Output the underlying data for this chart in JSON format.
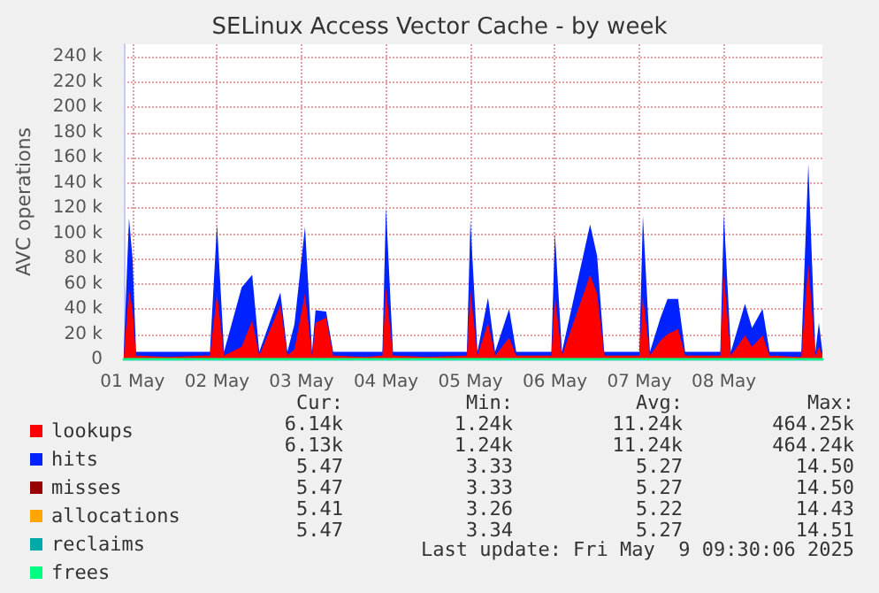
{
  "chart_data": {
    "type": "area",
    "title": "SELinux Access Vector Cache - by week",
    "ylabel": "AVC operations",
    "stacked": true,
    "grid": true,
    "legend": "bottom left",
    "x": [
      "2025-04-30T21:30",
      "2025-04-30T23:00",
      "2025-05-01T00:00",
      "2025-05-01T01:00",
      "2025-05-01T10:00",
      "2025-05-01T20:00",
      "2025-05-01T22:00",
      "2025-05-02T00:00",
      "2025-05-02T02:00",
      "2025-05-02T07:00",
      "2025-05-02T10:00",
      "2025-05-02T12:00",
      "2025-05-02T18:00",
      "2025-05-02T20:00",
      "2025-05-02T22:00",
      "2025-05-03T01:00",
      "2025-05-03T03:00",
      "2025-05-03T04:00",
      "2025-05-03T07:00",
      "2025-05-03T09:00",
      "2025-05-03T18:00",
      "2025-05-03T23:00",
      "2025-05-04T00:00",
      "2025-05-04T02:00",
      "2025-05-04T12:00",
      "2025-05-04T23:00",
      "2025-05-05T00:00",
      "2025-05-05T02:00",
      "2025-05-05T05:00",
      "2025-05-05T07:00",
      "2025-05-05T11:00",
      "2025-05-05T13:00",
      "2025-05-05T23:00",
      "2025-05-06T00:00",
      "2025-05-06T02:00",
      "2025-05-06T10:00",
      "2025-05-06T12:00",
      "2025-05-06T14:00",
      "2025-05-07T00:00",
      "2025-05-07T01:00",
      "2025-05-07T03:00",
      "2025-05-07T06:00",
      "2025-05-07T08:00",
      "2025-05-07T11:00",
      "2025-05-07T13:00",
      "2025-05-07T23:00",
      "2025-05-08T00:00",
      "2025-05-08T02:00",
      "2025-05-08T06:00",
      "2025-05-08T08:00",
      "2025-05-08T11:00",
      "2025-05-08T13:00",
      "2025-05-08T22:00",
      "2025-05-09T00:00",
      "2025-05-09T02:00",
      "2025-05-09T03:00",
      "2025-05-09T04:00"
    ],
    "series": [
      {
        "name": "lookups",
        "color": "#ff0000",
        "values": [
          2000,
          55000,
          40000,
          3000,
          2000,
          3000,
          3000,
          52000,
          3000,
          10000,
          31000,
          3000,
          43000,
          3000,
          8000,
          52000,
          3000,
          29000,
          33000,
          3000,
          2000,
          3000,
          57000,
          3000,
          2000,
          3000,
          55000,
          3000,
          29000,
          3000,
          17000,
          3000,
          3000,
          50000,
          3000,
          67000,
          52000,
          3000,
          3000,
          50000,
          3000,
          15000,
          20000,
          24000,
          3000,
          3000,
          67000,
          3000,
          19000,
          10000,
          19000,
          3000,
          2000,
          76000,
          3000,
          10000,
          3000
        ]
      },
      {
        "name": "hits",
        "color": "#0022ff",
        "values": [
          3000,
          57000,
          40000,
          3000,
          4000,
          3000,
          3000,
          55000,
          3000,
          47000,
          36000,
          3000,
          10000,
          3000,
          20000,
          53000,
          3000,
          10000,
          5000,
          3000,
          4000,
          3000,
          64000,
          3000,
          4000,
          3000,
          55000,
          3000,
          20000,
          3000,
          23000,
          3000,
          3000,
          50000,
          3000,
          40000,
          30000,
          3000,
          3000,
          64000,
          3000,
          18000,
          28000,
          24000,
          3000,
          3000,
          48000,
          3000,
          25000,
          15000,
          21000,
          3000,
          4000,
          79000,
          3000,
          19000,
          3000
        ]
      },
      {
        "name": "misses",
        "type": "line",
        "color": "#990000",
        "values": [
          null,
          null,
          null,
          null,
          null,
          null,
          null,
          null,
          null,
          null,
          null,
          null,
          null,
          null,
          null,
          null,
          null,
          null,
          null,
          null,
          null,
          null,
          null,
          null,
          null,
          null,
          null,
          null,
          null,
          null,
          null,
          null,
          null,
          null,
          null,
          null,
          null,
          null,
          null,
          null,
          null,
          null,
          null,
          null,
          null,
          null,
          null,
          null,
          null,
          null,
          null,
          null,
          null,
          null,
          null,
          null,
          null
        ]
      },
      {
        "name": "allocations",
        "type": "line",
        "color": "#ffa500",
        "values": [
          null,
          null,
          null,
          null,
          null,
          null,
          null,
          null,
          null,
          null,
          null,
          null,
          null,
          null,
          null,
          null,
          null,
          null,
          null,
          null,
          null,
          null,
          null,
          null,
          null,
          null,
          null,
          null,
          null,
          null,
          null,
          null,
          null,
          null,
          null,
          null,
          null,
          null,
          null,
          null,
          null,
          null,
          null,
          null,
          null,
          null,
          null,
          null,
          null,
          null,
          null,
          null,
          null,
          null,
          null,
          null,
          null
        ]
      },
      {
        "name": "reclaims",
        "type": "line",
        "color": "#00aaaa",
        "values": [
          null,
          null,
          null,
          null,
          null,
          null,
          null,
          null,
          null,
          null,
          null,
          null,
          null,
          null,
          null,
          null,
          null,
          null,
          null,
          null,
          null,
          null,
          null,
          null,
          null,
          null,
          null,
          null,
          null,
          null,
          null,
          null,
          null,
          null,
          null,
          null,
          null,
          null,
          null,
          null,
          null,
          null,
          null,
          null,
          null,
          null,
          null,
          null,
          null,
          null,
          null,
          null,
          null,
          null,
          null,
          null,
          null
        ]
      },
      {
        "name": "frees",
        "type": "line",
        "color": "#00ff80",
        "values": [
          5,
          5,
          5,
          5,
          5,
          5,
          5,
          5,
          5,
          5,
          5,
          5,
          5,
          5,
          5,
          5,
          5,
          5,
          5,
          5,
          5,
          5,
          5,
          5,
          5,
          5,
          5,
          5,
          5,
          5,
          5,
          5,
          5,
          5,
          5,
          5,
          5,
          5,
          5,
          5,
          5,
          5,
          5,
          5,
          5,
          5,
          5,
          5,
          5,
          5,
          5,
          5,
          5,
          5,
          5,
          5,
          5
        ]
      }
    ],
    "xlim": [
      "2025-04-30T21:30",
      "2025-05-09T04:00"
    ],
    "xticks": [
      {
        "value": "2025-05-01",
        "label": "01 May"
      },
      {
        "value": "2025-05-02",
        "label": "02 May"
      },
      {
        "value": "2025-05-03",
        "label": "03 May"
      },
      {
        "value": "2025-05-04",
        "label": "04 May"
      },
      {
        "value": "2025-05-05",
        "label": "05 May"
      },
      {
        "value": "2025-05-06",
        "label": "06 May"
      },
      {
        "value": "2025-05-07",
        "label": "07 May"
      },
      {
        "value": "2025-05-08",
        "label": "08 May"
      }
    ],
    "ylim": [
      0,
      250000
    ],
    "yticks": [
      {
        "value": 0,
        "label": "0"
      },
      {
        "value": 20000,
        "label": "20 k"
      },
      {
        "value": 40000,
        "label": "40 k"
      },
      {
        "value": 60000,
        "label": "60 k"
      },
      {
        "value": 80000,
        "label": "80 k"
      },
      {
        "value": 100000,
        "label": "100 k"
      },
      {
        "value": 120000,
        "label": "120 k"
      },
      {
        "value": 140000,
        "label": "140 k"
      },
      {
        "value": 160000,
        "label": "160 k"
      },
      {
        "value": 180000,
        "label": "180 k"
      },
      {
        "value": 200000,
        "label": "200 k"
      },
      {
        "value": 220000,
        "label": "220 k"
      },
      {
        "value": 240000,
        "label": "240 k"
      }
    ],
    "annotations": [
      "Cur:",
      "Min:",
      "Avg:",
      "Max:",
      "6.14k",
      "1.24k",
      "11.24k",
      "464.25k",
      "6.13k",
      "1.24k",
      "11.24k",
      "464.24k",
      "5.47",
      "3.33",
      "5.27",
      "14.50",
      "5.47",
      "3.33",
      "5.27",
      "14.50",
      "5.41",
      "3.26",
      "5.22",
      "14.43",
      "5.47",
      "3.34",
      "5.27",
      "14.51",
      "Last update: Fri May  9 09:30:06 2025"
    ]
  }
}
